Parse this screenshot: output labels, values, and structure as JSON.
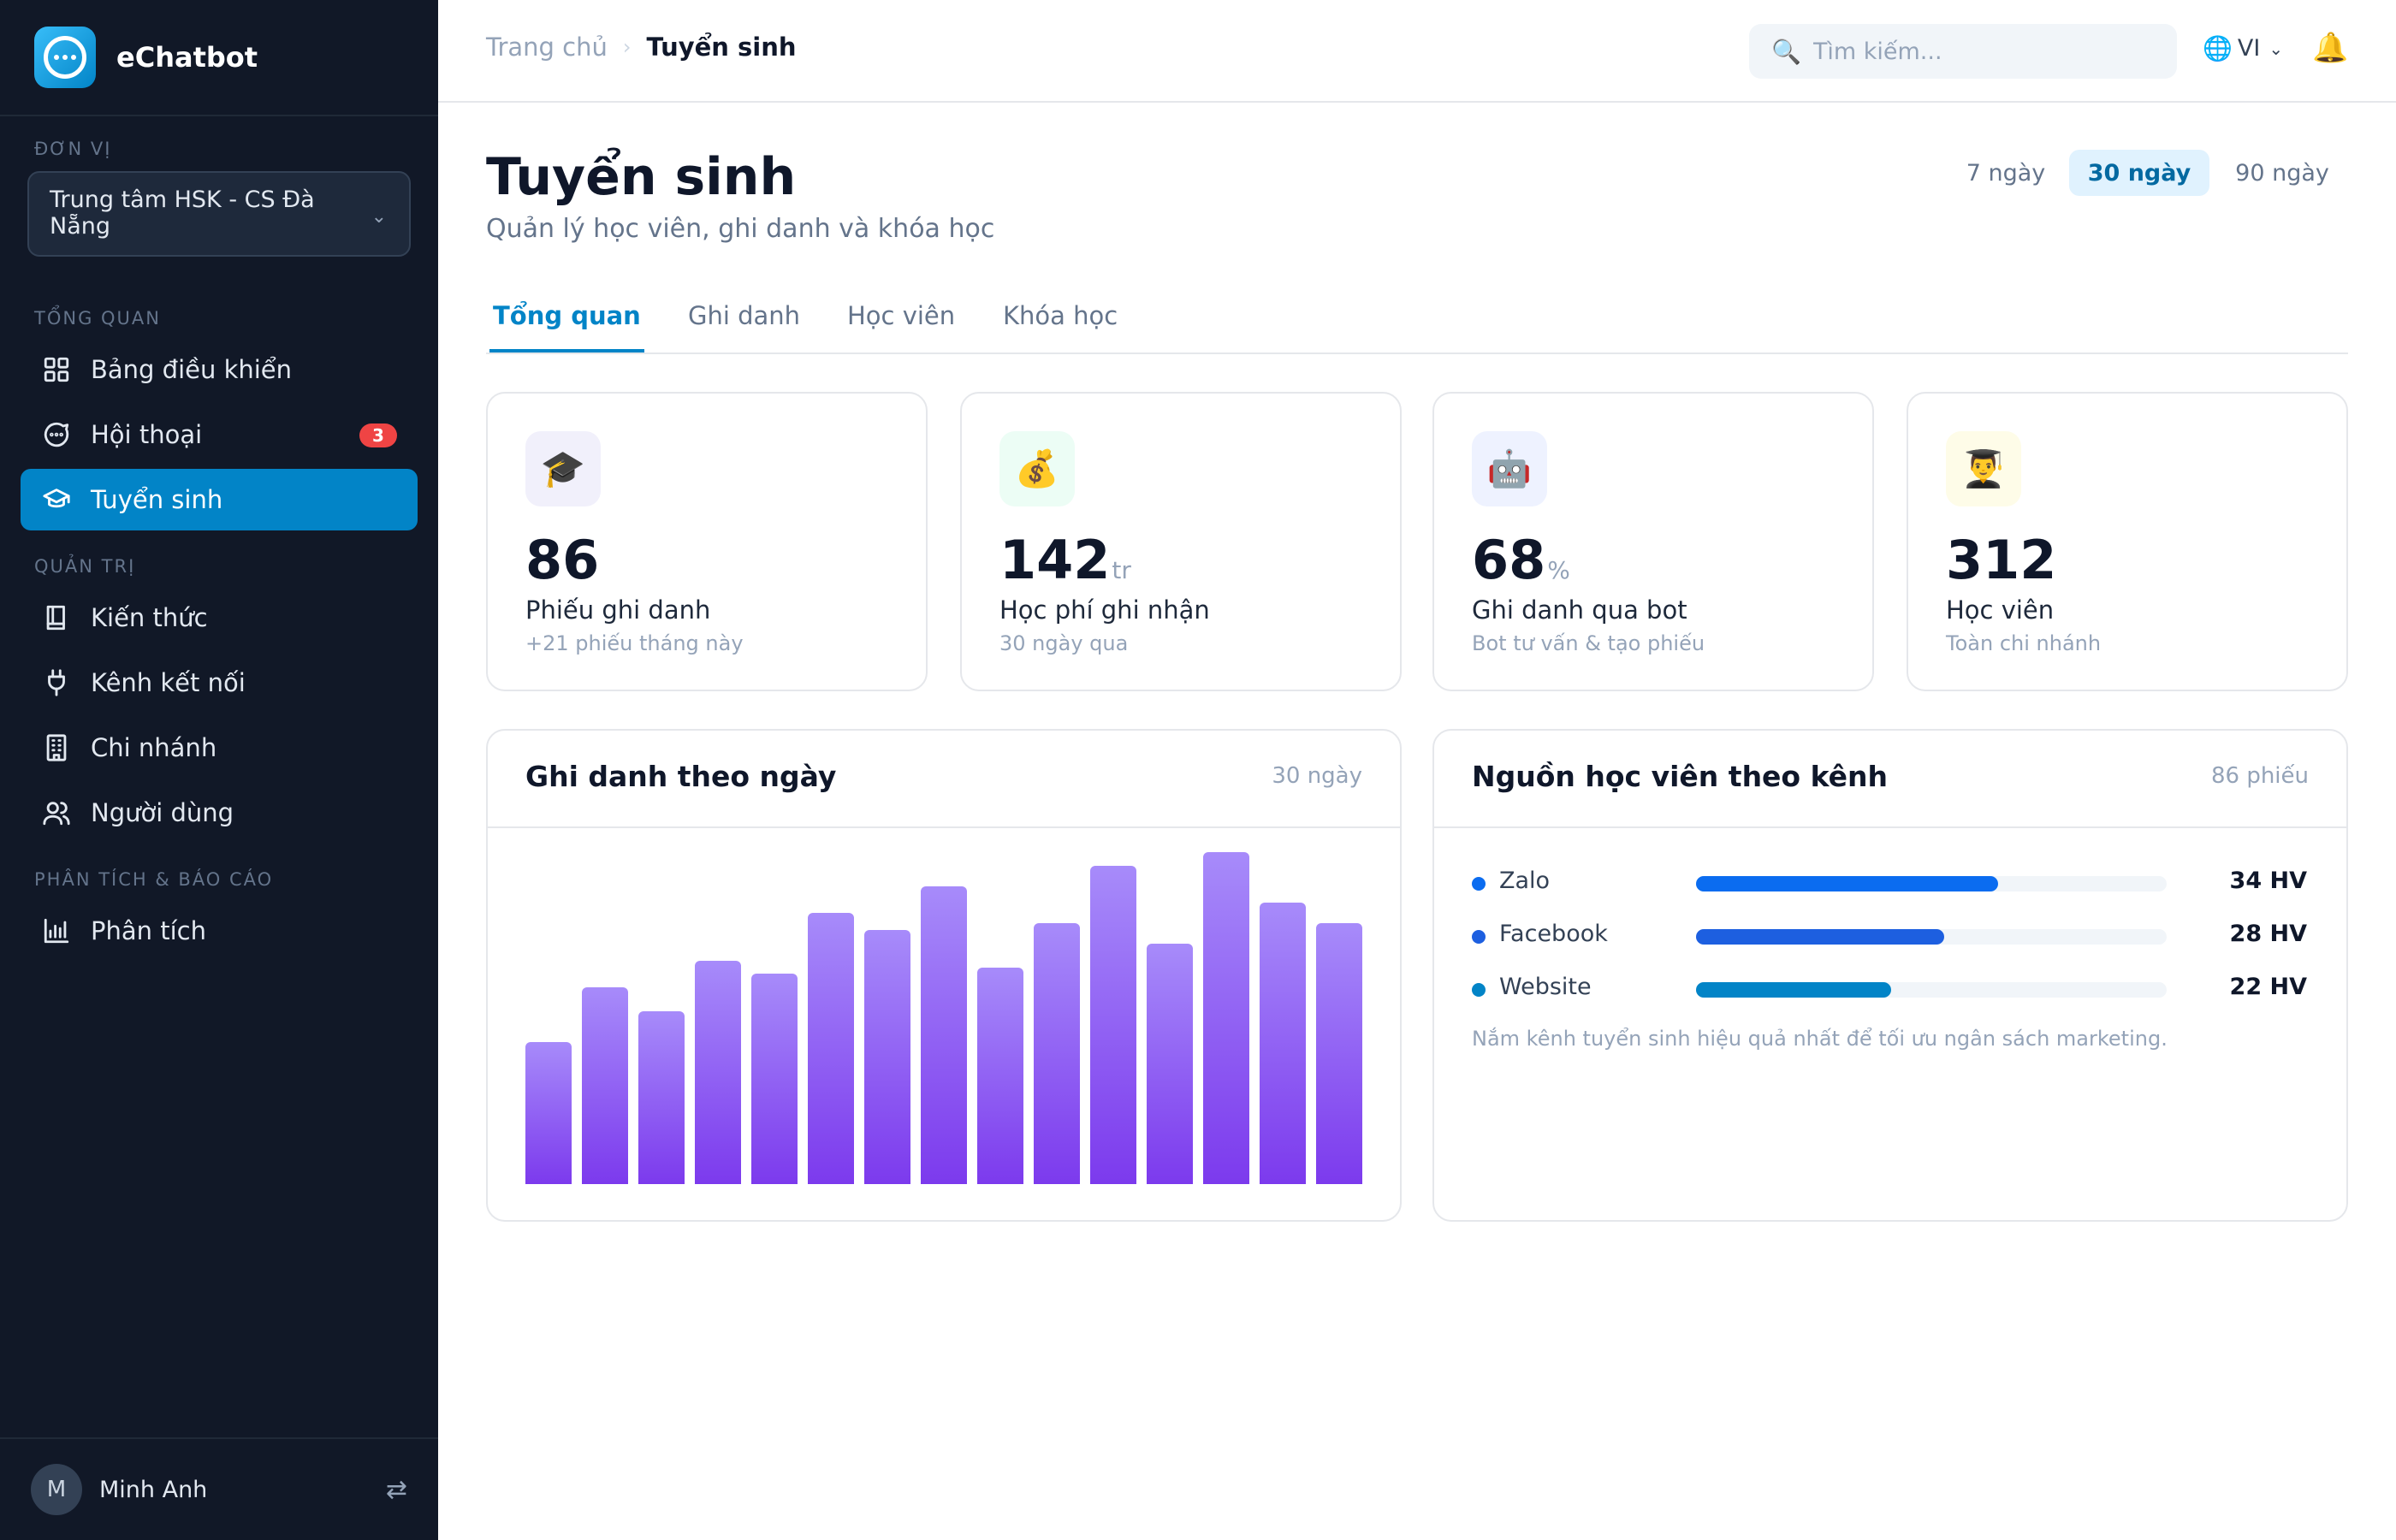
{
  "brand": {
    "name": "eChatbot"
  },
  "sidebar": {
    "unit_label": "ĐƠN VỊ",
    "unit_selected": "Trung tâm HSK - CS Đà Nẵng",
    "sections": [
      {
        "label": "TỔNG QUAN"
      },
      {
        "label": "QUẢN TRỊ"
      },
      {
        "label": "PHÂN TÍCH & BÁO CÁO"
      }
    ],
    "items": [
      {
        "label": "Bảng điều khiển",
        "icon": "grid-icon"
      },
      {
        "label": "Hội thoại",
        "icon": "chat-icon",
        "badge": "3"
      },
      {
        "label": "Tuyển sinh",
        "icon": "graduation-cap-icon",
        "active": true
      },
      {
        "label": "Kiến thức",
        "icon": "book-icon"
      },
      {
        "label": "Kênh kết nối",
        "icon": "plug-icon"
      },
      {
        "label": "Chi nhánh",
        "icon": "building-icon"
      },
      {
        "label": "Người dùng",
        "icon": "users-icon"
      },
      {
        "label": "Phân tích",
        "icon": "bar-chart-icon"
      }
    ],
    "user": {
      "initial": "M",
      "name": "Minh Anh"
    }
  },
  "header": {
    "breadcrumb": {
      "home": "Trang chủ",
      "current": "Tuyển sinh"
    },
    "search_placeholder": "Tìm kiếm...",
    "language": "VI"
  },
  "page": {
    "title": "Tuyển sinh",
    "subtitle": "Quản lý học viên, ghi danh và khóa học",
    "ranges": [
      {
        "label": "7 ngày"
      },
      {
        "label": "30 ngày",
        "active": true
      },
      {
        "label": "90 ngày"
      }
    ],
    "tabs": [
      {
        "label": "Tổng quan",
        "active": true
      },
      {
        "label": "Ghi danh"
      },
      {
        "label": "Học viên"
      },
      {
        "label": "Khóa học"
      }
    ]
  },
  "kpis": [
    {
      "icon": "🎓",
      "icon_bg": "#f1f0fb",
      "value": "86",
      "unit": "",
      "label": "Phiếu ghi danh",
      "sub": "+21 phiếu tháng này"
    },
    {
      "icon": "💰",
      "icon_bg": "#ecfdf5",
      "value": "142",
      "unit": "tr",
      "label": "Học phí ghi nhận",
      "sub": "30 ngày qua"
    },
    {
      "icon": "🤖",
      "icon_bg": "#eef2ff",
      "value": "68",
      "unit": "%",
      "label": "Ghi danh qua bot",
      "sub": "Bot tư vấn & tạo phiếu"
    },
    {
      "icon": "👨‍🎓",
      "icon_bg": "#fefce8",
      "value": "312",
      "unit": "",
      "label": "Học viên",
      "sub": "Toàn chi nhánh"
    }
  ],
  "enroll_panel": {
    "title": "Ghi danh theo ngày",
    "meta": "30 ngày"
  },
  "chart_data": {
    "type": "bar",
    "values": [
      42,
      58,
      51,
      66,
      62,
      80,
      75,
      88,
      64,
      77,
      94,
      71,
      98,
      83,
      77
    ],
    "ylim": [
      0,
      100
    ],
    "color": "#8b5cf6"
  },
  "source_panel": {
    "title": "Nguồn học viên theo kênh",
    "meta": "86 phiếu",
    "total": 86,
    "sources": [
      {
        "name": "Zalo",
        "value": 34,
        "label": "34 HV",
        "color": "#0b6cf0"
      },
      {
        "name": "Facebook",
        "value": 28,
        "label": "28 HV",
        "color": "#1d5fe0"
      },
      {
        "name": "Website",
        "value": 22,
        "label": "22 HV",
        "color": "#0284c7"
      }
    ],
    "note": "Nắm kênh tuyển sinh hiệu quả nhất để tối ưu ngân sách marketing."
  }
}
